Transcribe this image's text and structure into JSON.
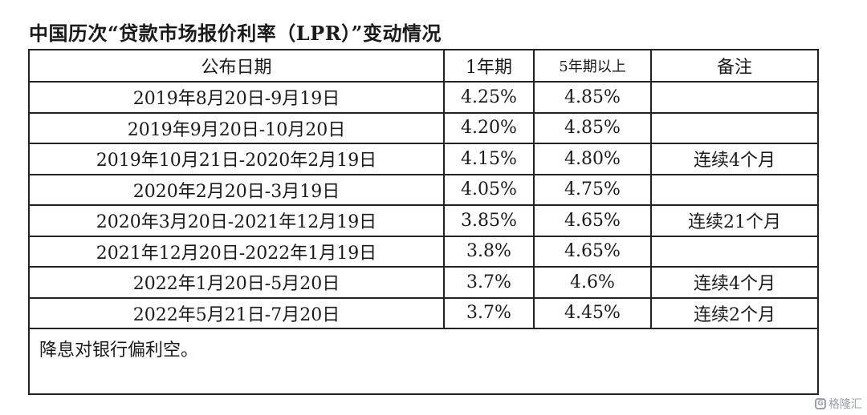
{
  "title": "中国历次“贷款市场报价利率（LPR）”变动情况",
  "table": {
    "headers": [
      "公布日期",
      "1年期",
      "5年期以上",
      "备注"
    ],
    "rows": [
      [
        "2019年8月20日-9月19日",
        "4.25%",
        "4.85%",
        ""
      ],
      [
        "2019年9月20日-10月20日",
        "4.20%",
        "4.85%",
        ""
      ],
      [
        "2019年10月21日-2020年2月19日",
        "4.15%",
        "4.80%",
        "连续4个月"
      ],
      [
        "2020年2月20日-3月19日",
        "4.05%",
        "4.75%",
        ""
      ],
      [
        "2020年3月20日-2021年12月19日",
        "3.85%",
        "4.65%",
        "连续21个月"
      ],
      [
        "2021年12月20日-2022年1月19日",
        "3.8%",
        "4.65%",
        ""
      ],
      [
        "2022年1月20日-5月20日",
        "3.7%",
        "4.6%",
        "连续4个月"
      ],
      [
        "2022年5月21日-7月20日",
        "3.7%",
        "4.45%",
        "连续2个月"
      ]
    ],
    "footnote": "降息对银行偏利空。"
  },
  "watermark": {
    "logo": "G",
    "text": "格隆汇"
  }
}
